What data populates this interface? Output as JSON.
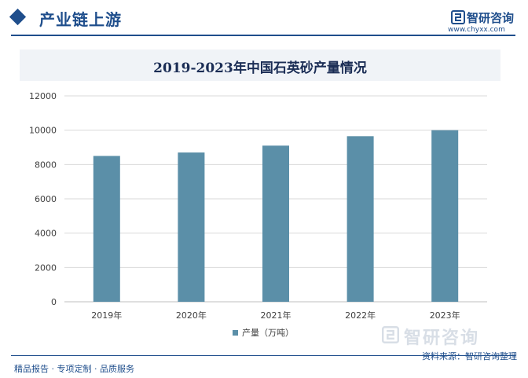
{
  "header": {
    "section_title": "产业链上游",
    "brand_name": "智研咨询",
    "brand_url": "www.chyxx.com"
  },
  "chart_data": {
    "type": "bar",
    "title": "2019-2023年中国石英砂产量情况",
    "categories": [
      "2019年",
      "2020年",
      "2021年",
      "2022年",
      "2023年"
    ],
    "series": [
      {
        "name": "产量（万吨）",
        "values": [
          8500,
          8700,
          9100,
          9650,
          10000
        ]
      }
    ],
    "ylim": [
      0,
      12000
    ],
    "yticks": [
      0,
      2000,
      4000,
      6000,
      8000,
      10000,
      12000
    ],
    "grid": true,
    "legend_position": "bottom",
    "colors": {
      "bar": "#5b8fa8",
      "grid": "#d9d9d9",
      "axis": "#bfbfbf",
      "text": "#404040"
    }
  },
  "watermark": {
    "text": "智研咨询"
  },
  "footer": {
    "left_text": "精品报告 · 专项定制 · 品质服务",
    "source_text": "资料来源：智研咨询整理"
  }
}
